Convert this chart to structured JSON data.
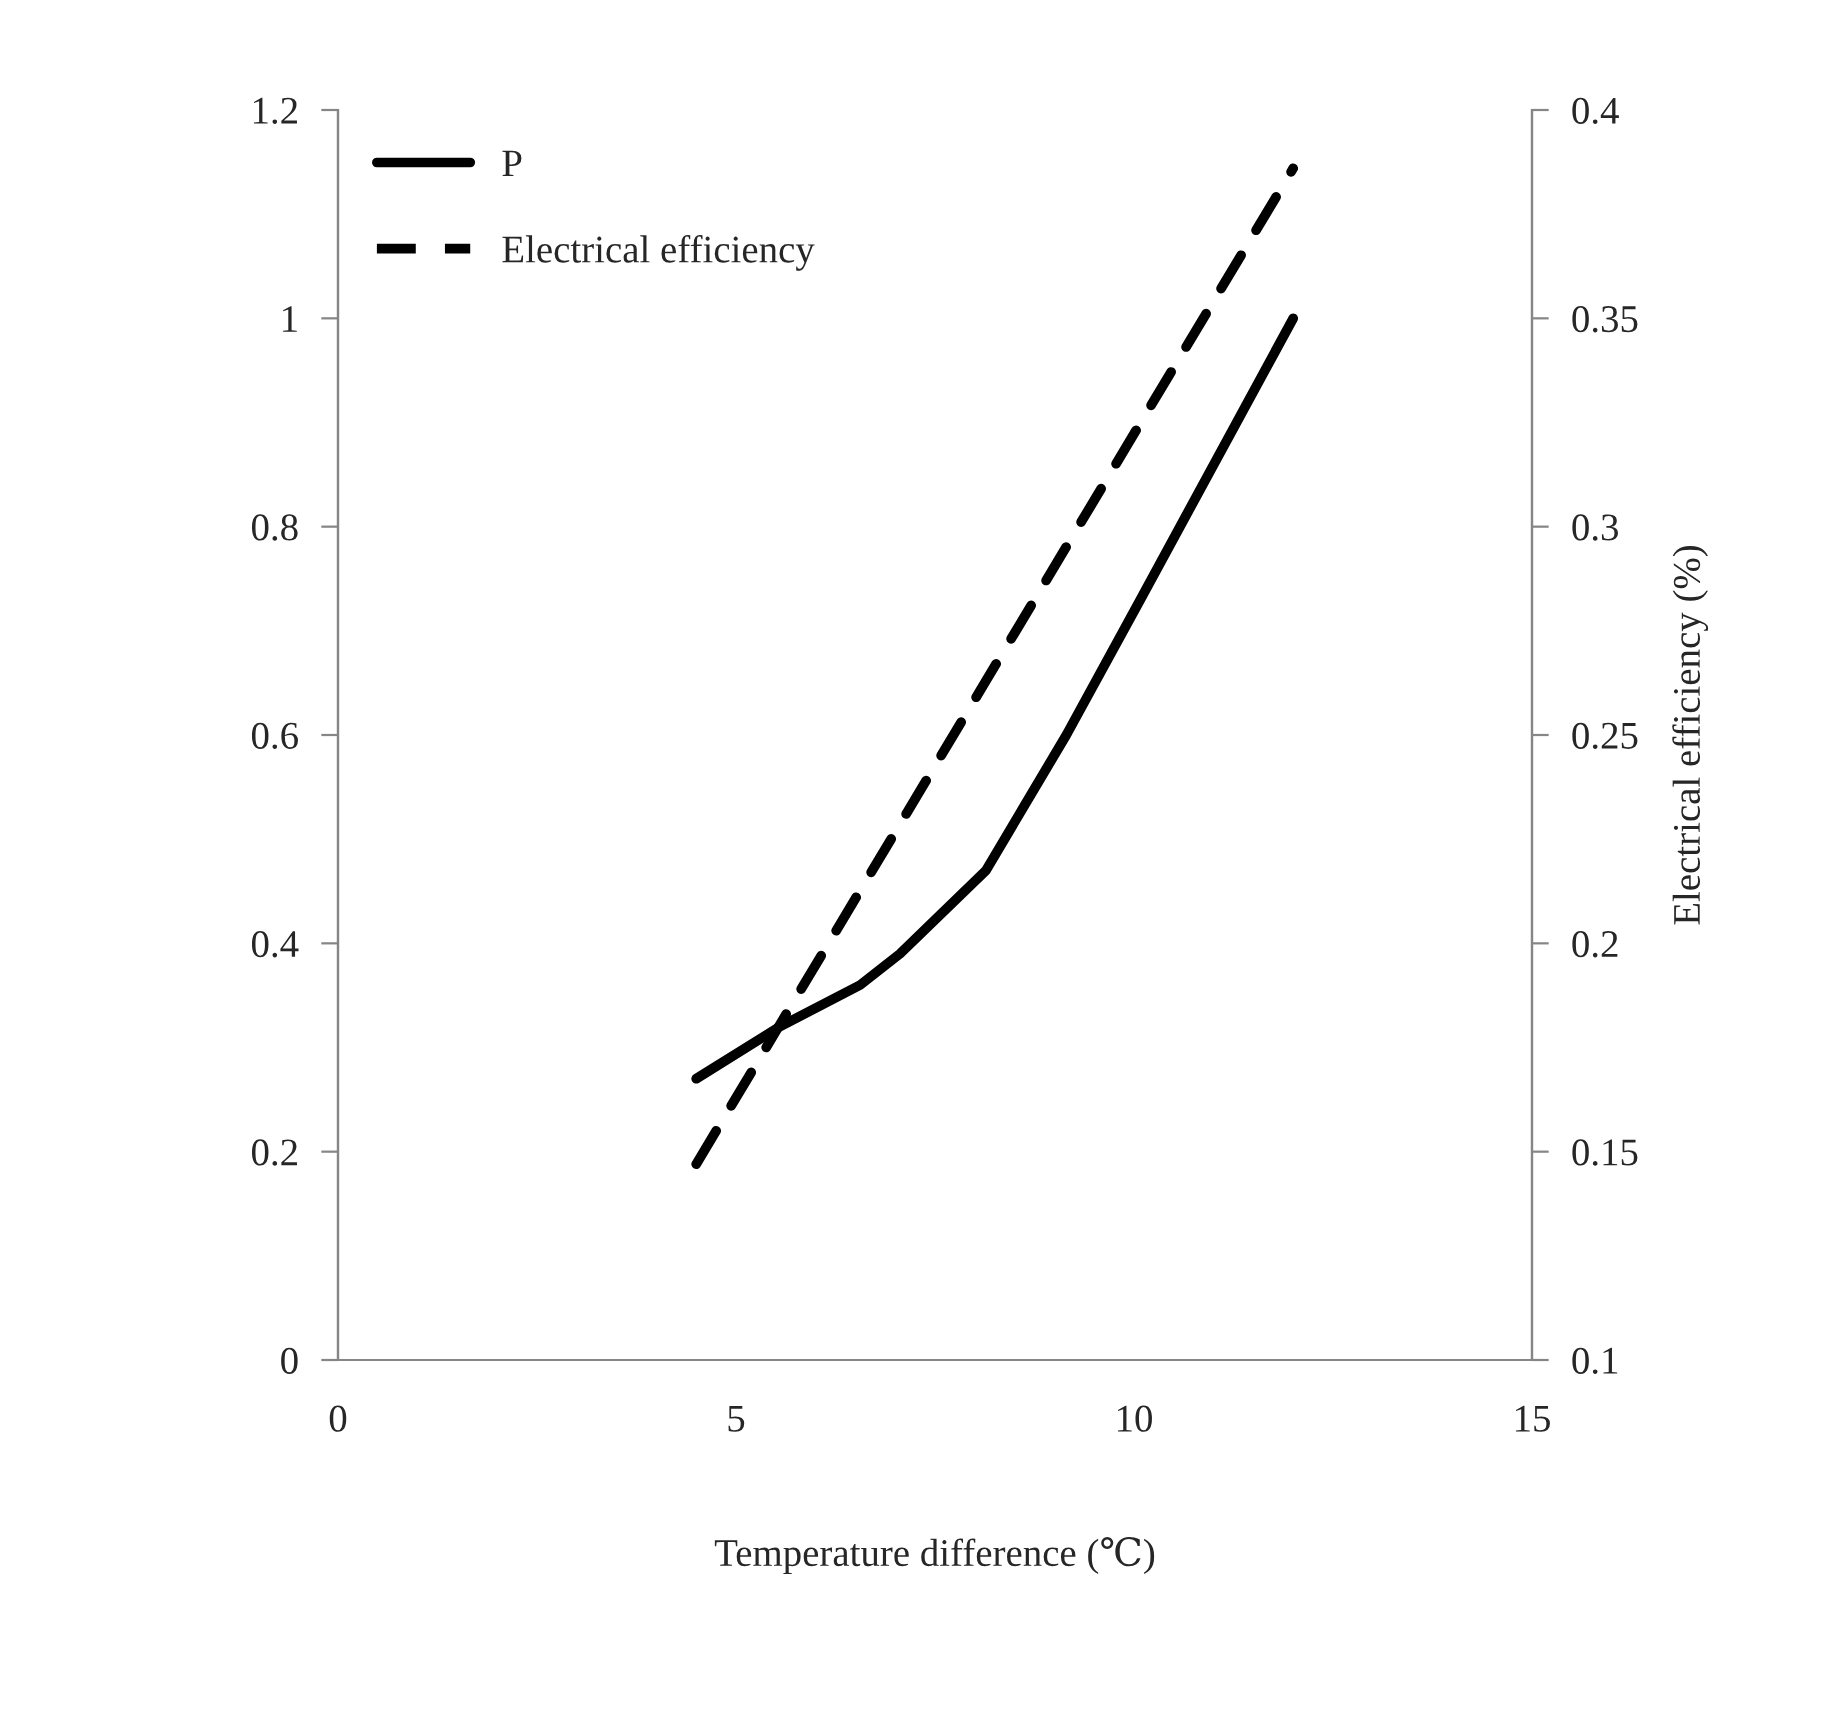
{
  "chart_data": {
    "type": "line",
    "xlabel": "Temperature difference (℃)",
    "y2label": "Electrical efficiency (%)",
    "xlim": [
      0,
      15
    ],
    "xticks": [
      0,
      5,
      10,
      15
    ],
    "ylim": [
      0,
      1.2
    ],
    "yticks": [
      0,
      0.2,
      0.4,
      0.6,
      0.8,
      1,
      1.2
    ],
    "y2lim": [
      0.1,
      0.4
    ],
    "y2ticks": [
      0.1,
      0.15,
      0.2,
      0.25,
      0.3,
      0.35,
      0.4
    ],
    "grid": false,
    "legend": "top left",
    "marker": "none",
    "series": [
      {
        "name": "P",
        "color": "#000000",
        "line_style": "solid",
        "x": [
          4.5,
          5.55,
          6.56,
          7.06,
          8.14,
          9.15,
          10.08,
          12
        ],
        "values": [
          0.27,
          0.32,
          0.36,
          0.39,
          0.47,
          0.6,
          0.73,
          1.0
        ]
      },
      {
        "name": "Electrical efficiency",
        "color": "#000000",
        "line_style": "dashed",
        "axis": "y2",
        "x": [
          4.5,
          12
        ],
        "values": [
          0.147,
          0.386
        ]
      }
    ]
  }
}
